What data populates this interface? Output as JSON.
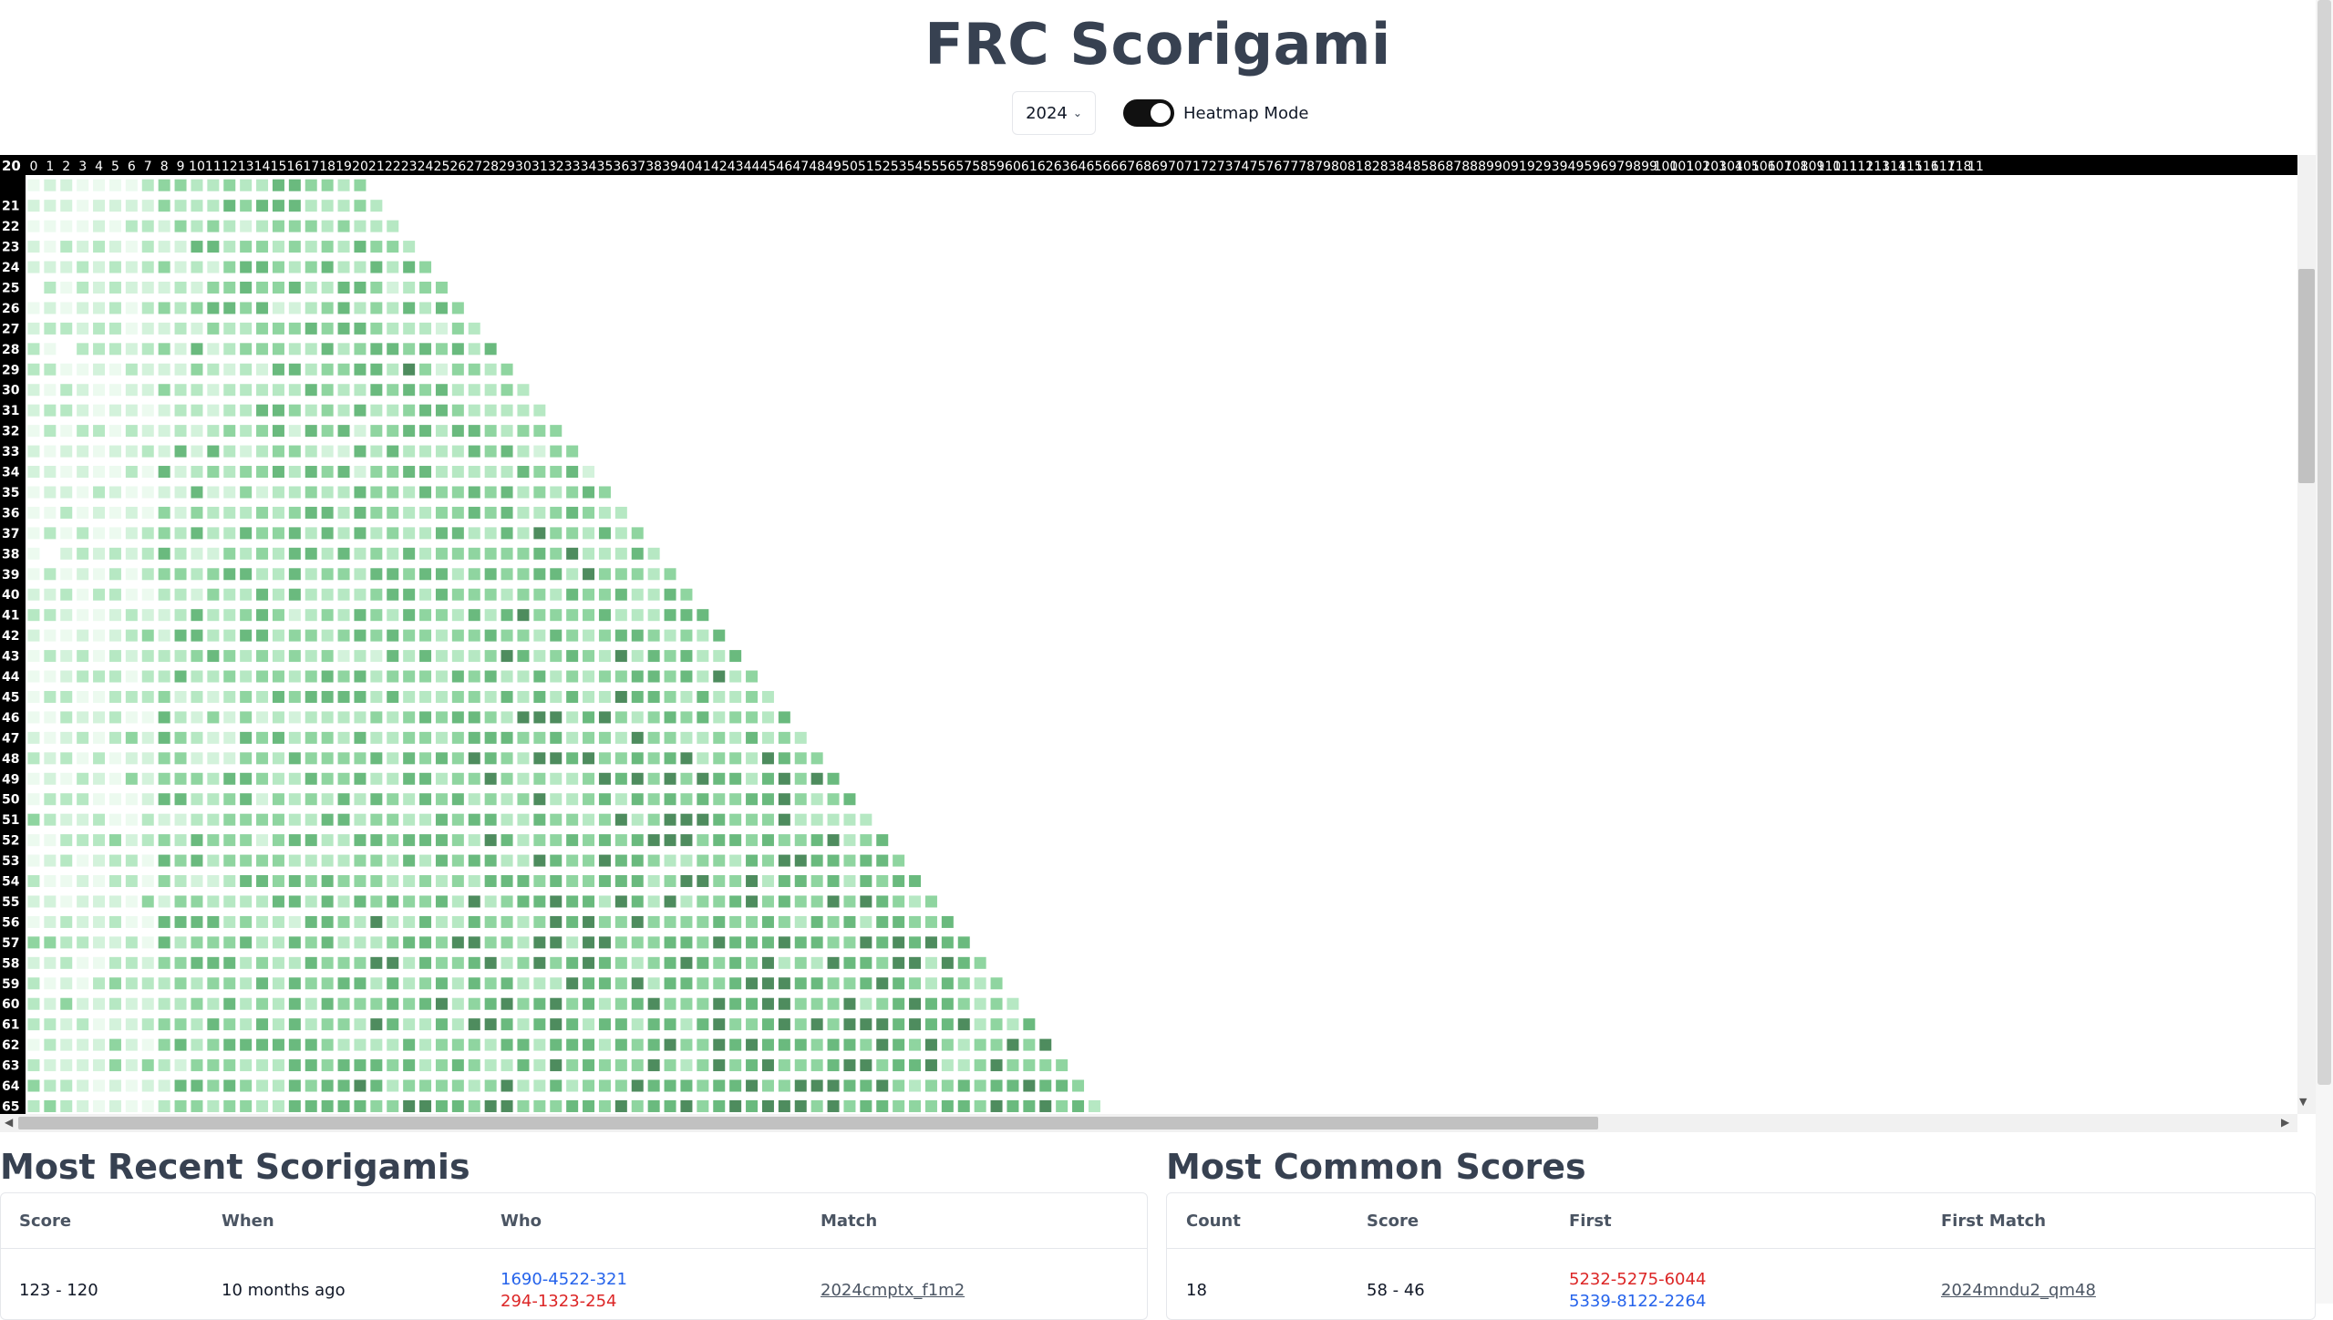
{
  "page": {
    "title": "FRC Scorigami"
  },
  "controls": {
    "year": "2024",
    "toggle_label": "Heatmap Mode",
    "heatmap_on": true
  },
  "grid": {
    "col_start": 0,
    "col_end": 119,
    "col_header_last_text": "11",
    "row_start": 20,
    "row_end": 66,
    "colors": [
      "#ecfaef",
      "#d3f2db",
      "#b6e8c3",
      "#8fd5a0",
      "#6aba7e",
      "#4e8c5e"
    ]
  },
  "recent": {
    "title": "Most Recent Scorigamis",
    "headers": [
      "Score",
      "When",
      "Who",
      "Match"
    ],
    "rows": [
      {
        "score": "123 - 120",
        "when": "10 months ago",
        "who_blue": "1690-4522-321",
        "who_red": "294-1323-254",
        "match": "2024cmptx_f1m2"
      }
    ]
  },
  "common": {
    "title": "Most Common Scores",
    "headers": [
      "Count",
      "Score",
      "First",
      "First Match"
    ],
    "rows": [
      {
        "count": "18",
        "score": "58 - 46",
        "first_red": "5232-5275-6044",
        "first_blue": "5339-8122-2264",
        "match": "2024mndu2_qm48"
      }
    ]
  }
}
